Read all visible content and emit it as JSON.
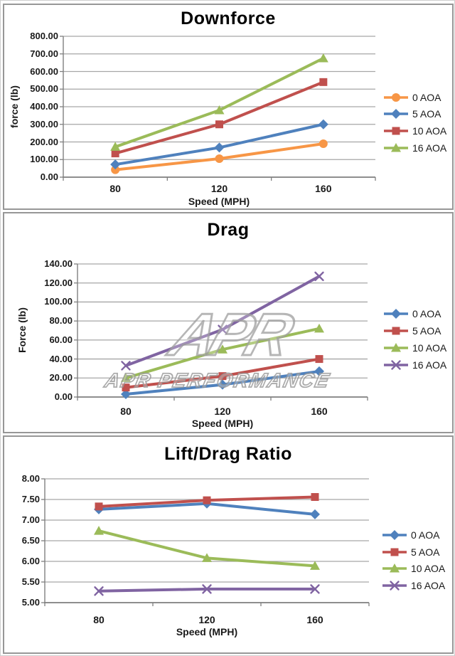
{
  "colors": {
    "gridline": "#A6A6A6",
    "axis": "#808080",
    "text": "#000000",
    "watermark_gray": "#A9A9A9",
    "series_orange": "#F79646",
    "series_blue": "#4F81BD",
    "series_red": "#C0504D",
    "series_green": "#9BBB59",
    "series_purple": "#8064A2"
  },
  "watermark": {
    "logo": "APR",
    "text": "APR PERFORMANCE"
  },
  "chart_data": [
    {
      "type": "line",
      "title": "Downforce",
      "xlabel": "Speed (MPH)",
      "ylabel": "force (lb)",
      "categories": [
        "80",
        "120",
        "160"
      ],
      "x": [
        80,
        120,
        160
      ],
      "ylim": [
        0,
        800
      ],
      "ytick_step": 100,
      "ytick_labels": [
        "0.00",
        "100.00",
        "200.00",
        "300.00",
        "400.00",
        "500.00",
        "600.00",
        "700.00",
        "800.00"
      ],
      "grid": true,
      "legend_position": "right",
      "series": [
        {
          "name": "0 AOA",
          "values": [
            42,
            105,
            190
          ],
          "color": "#F79646",
          "marker": "circle"
        },
        {
          "name": "5 AOA",
          "values": [
            72,
            168,
            300
          ],
          "color": "#4F81BD",
          "marker": "diamond"
        },
        {
          "name": "10 AOA",
          "values": [
            135,
            300,
            540
          ],
          "color": "#C0504D",
          "marker": "square"
        },
        {
          "name": "16 AOA",
          "values": [
            172,
            380,
            675
          ],
          "color": "#9BBB59",
          "marker": "triangle"
        }
      ]
    },
    {
      "type": "line",
      "title": "Drag",
      "xlabel": "Speed (MPH)",
      "ylabel": "Force (lb)",
      "categories": [
        "80",
        "120",
        "160"
      ],
      "x": [
        80,
        120,
        160
      ],
      "ylim": [
        0,
        140
      ],
      "ytick_step": 20,
      "ytick_labels": [
        "0.00",
        "20.00",
        "40.00",
        "60.00",
        "80.00",
        "100.00",
        "120.00",
        "140.00"
      ],
      "grid": true,
      "legend_position": "right",
      "series": [
        {
          "name": "0 AOA",
          "values": [
            3,
            13,
            27
          ],
          "color": "#4F81BD",
          "marker": "diamond"
        },
        {
          "name": "5 AOA",
          "values": [
            10,
            22,
            40
          ],
          "color": "#C0504D",
          "marker": "square"
        },
        {
          "name": "10 AOA",
          "values": [
            20,
            50,
            72
          ],
          "color": "#9BBB59",
          "marker": "triangle"
        },
        {
          "name": "16 AOA",
          "values": [
            33,
            71,
            127
          ],
          "color": "#8064A2",
          "marker": "x"
        }
      ]
    },
    {
      "type": "line",
      "title": "Lift/Drag Ratio",
      "xlabel": "Speed (MPH)",
      "ylabel": "",
      "categories": [
        "80",
        "120",
        "160"
      ],
      "x": [
        80,
        120,
        160
      ],
      "ylim": [
        5,
        8
      ],
      "ytick_step": 0.5,
      "ytick_labels": [
        "5.00",
        "5.50",
        "6.00",
        "6.50",
        "7.00",
        "7.50",
        "8.00"
      ],
      "grid": true,
      "legend_position": "right",
      "series": [
        {
          "name": "0 AOA",
          "values": [
            7.26,
            7.4,
            7.14
          ],
          "color": "#4F81BD",
          "marker": "diamond"
        },
        {
          "name": "5 AOA",
          "values": [
            7.33,
            7.48,
            7.56
          ],
          "color": "#C0504D",
          "marker": "square"
        },
        {
          "name": "10 AOA",
          "values": [
            6.74,
            6.08,
            5.89
          ],
          "color": "#9BBB59",
          "marker": "triangle"
        },
        {
          "name": "16 AOA",
          "values": [
            5.28,
            5.33,
            5.33
          ],
          "color": "#8064A2",
          "marker": "x"
        }
      ]
    }
  ]
}
